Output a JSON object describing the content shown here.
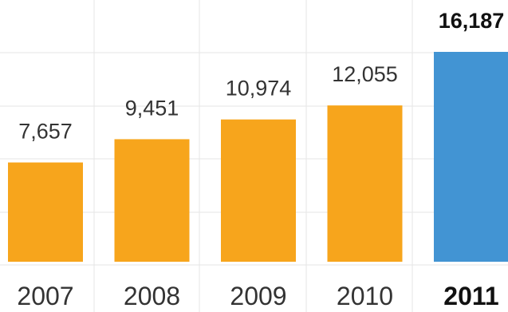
{
  "chart_data": {
    "type": "bar",
    "title": "",
    "xlabel": "",
    "ylabel": "",
    "categories": [
      "2007",
      "2008",
      "2009",
      "2010",
      "2011"
    ],
    "values": [
      7657,
      9451,
      10974,
      12055,
      16187
    ],
    "value_labels": [
      "7,657",
      "9,451",
      "10,974",
      "12,055",
      "16,187"
    ],
    "highlight_index": 4,
    "ylim": [
      0,
      16187
    ],
    "grid": true,
    "legend": "none",
    "colors": {
      "bar": "#f7a51c",
      "highlight_bar": "#4294d3",
      "grid": "#e6e6e6"
    }
  }
}
